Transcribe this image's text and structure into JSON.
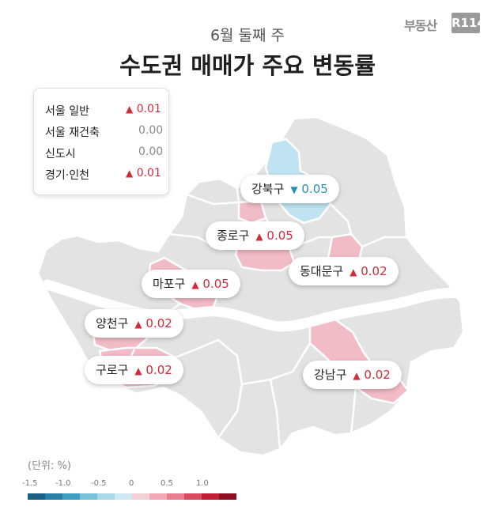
{
  "header": {
    "subtitle": "6월 둘째 주",
    "title": "수도권 매매가 주요 변동률",
    "logo_text": "부동산",
    "logo_box": "R114"
  },
  "summary": [
    {
      "name": "서울 일반",
      "value": "0.01",
      "dir": "up"
    },
    {
      "name": "서울 재건축",
      "value": "0.00",
      "dir": "neutral"
    },
    {
      "name": "신도시",
      "value": "0.00",
      "dir": "neutral"
    },
    {
      "name": "경기·인천",
      "value": "0.01",
      "dir": "up"
    }
  ],
  "districts": [
    {
      "name": "강북구",
      "value": "0.05",
      "dir": "down"
    },
    {
      "name": "종로구",
      "value": "0.05",
      "dir": "up"
    },
    {
      "name": "동대문구",
      "value": "0.02",
      "dir": "up"
    },
    {
      "name": "마포구",
      "value": "0.05",
      "dir": "up"
    },
    {
      "name": "양천구",
      "value": "0.02",
      "dir": "up"
    },
    {
      "name": "구로구",
      "value": "0.02",
      "dir": "up"
    },
    {
      "name": "강남구",
      "value": "0.02",
      "dir": "up"
    }
  ],
  "arrows": {
    "up": "▲",
    "down": "▼",
    "neutral": ""
  },
  "unit_label": "(단위: %)",
  "scale_labels": [
    "-1.5",
    "-1.0",
    "-0.5",
    "0",
    "0.5",
    "1.0"
  ],
  "colors": {
    "map_base": "#e3e3e3",
    "map_border": "#ffffff",
    "increase_fill": "#f2bcc6",
    "decrease_fill": "#bfe3f0",
    "river": "#ffffff",
    "up": "#d22a3a",
    "down": "#2a8fb0",
    "scale": [
      "#1b5f83",
      "#2a7fa6",
      "#3f9dc1",
      "#7bc0da",
      "#a9d8e8",
      "#cfe9f2",
      "#f5cfd6",
      "#f0a9b5",
      "#e77d8f",
      "#d9495f",
      "#c11f36",
      "#8e0d20"
    ]
  }
}
